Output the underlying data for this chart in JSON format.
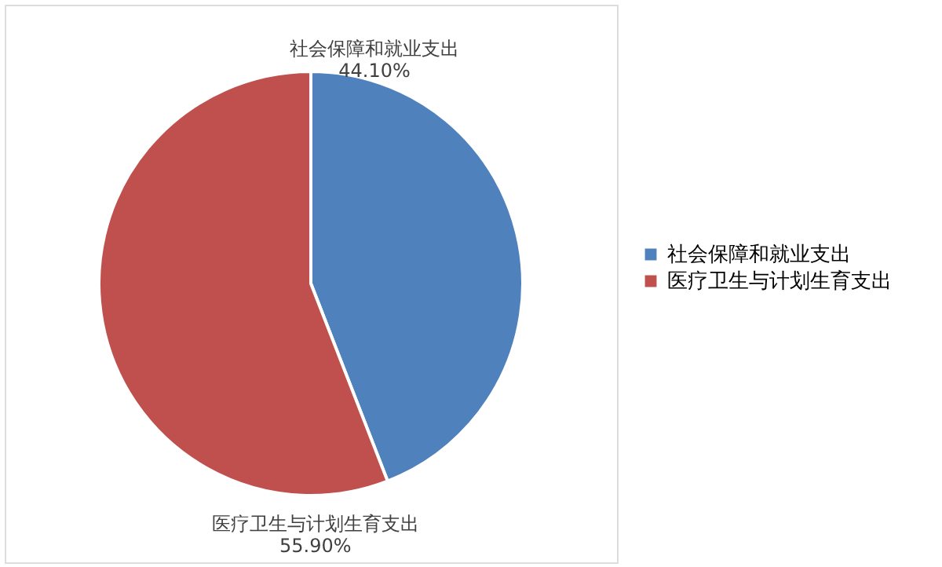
{
  "chart_data": {
    "type": "pie",
    "categories": [
      "社会保障和就业支出",
      "医疗卫生与计划生育支出"
    ],
    "values": [
      44.1,
      55.9
    ],
    "colors": [
      "#4f81bd",
      "#c0504d"
    ],
    "value_labels": [
      "44.10%",
      "55.90%"
    ],
    "legend": "right"
  }
}
